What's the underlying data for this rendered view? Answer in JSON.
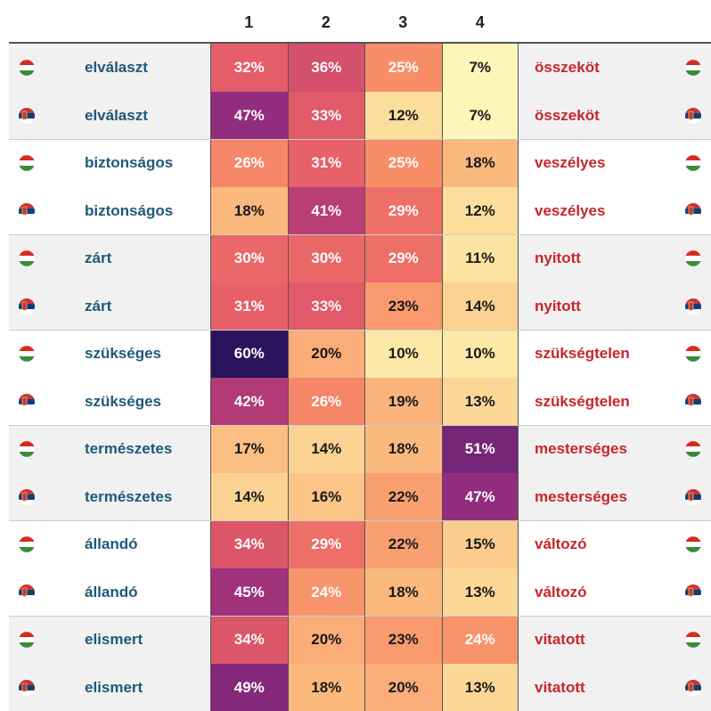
{
  "table": {
    "columns": [
      "1",
      "2",
      "3",
      "4"
    ],
    "rows": [
      {
        "left": "elválaszt",
        "cells": [
          "32%",
          "36%",
          "25%",
          "7%"
        ],
        "right": "összeköt"
      },
      {
        "left": "elválaszt",
        "cells": [
          "47%",
          "33%",
          "12%",
          "7%"
        ],
        "right": "összeköt"
      },
      {
        "left": "biztonságos",
        "cells": [
          "26%",
          "31%",
          "25%",
          "18%"
        ],
        "right": "veszélyes"
      },
      {
        "left": "biztonságos",
        "cells": [
          "18%",
          "41%",
          "29%",
          "12%"
        ],
        "right": "veszélyes"
      },
      {
        "left": "zárt",
        "cells": [
          "30%",
          "30%",
          "29%",
          "11%"
        ],
        "right": "nyitott"
      },
      {
        "left": "zárt",
        "cells": [
          "31%",
          "33%",
          "23%",
          "14%"
        ],
        "right": "nyitott"
      },
      {
        "left": "szükséges",
        "cells": [
          "60%",
          "20%",
          "10%",
          "10%"
        ],
        "right": "szükségtelen"
      },
      {
        "left": "szükséges",
        "cells": [
          "42%",
          "26%",
          "19%",
          "13%"
        ],
        "right": "szükségtelen"
      },
      {
        "left": "természetes",
        "cells": [
          "17%",
          "14%",
          "18%",
          "51%"
        ],
        "right": "mesterséges"
      },
      {
        "left": "természetes",
        "cells": [
          "14%",
          "16%",
          "22%",
          "47%"
        ],
        "right": "mesterséges"
      },
      {
        "left": "állandó",
        "cells": [
          "34%",
          "29%",
          "22%",
          "15%"
        ],
        "right": "változó"
      },
      {
        "left": "állandó",
        "cells": [
          "45%",
          "24%",
          "18%",
          "13%"
        ],
        "right": "változó"
      },
      {
        "left": "elismert",
        "cells": [
          "34%",
          "20%",
          "23%",
          "24%"
        ],
        "right": "vitatott"
      },
      {
        "left": "elismert",
        "cells": [
          "49%",
          "18%",
          "20%",
          "13%"
        ],
        "right": "vitatott"
      }
    ]
  }
}
